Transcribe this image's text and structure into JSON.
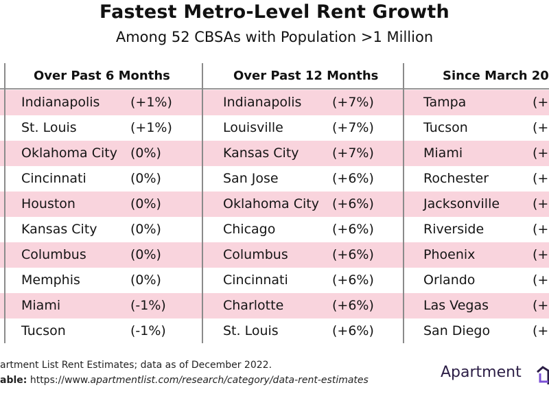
{
  "title": "Fastest Metro-Level Rent Growth",
  "subtitle": "Among 52 CBSAs with Population >1 Million",
  "columns": [
    {
      "header": "Over Past 6 Months",
      "rows": [
        {
          "metro": "Indianapolis",
          "value": "(+1%)"
        },
        {
          "metro": "St. Louis",
          "value": "(+1%)"
        },
        {
          "metro": "Oklahoma City",
          "value": "(0%)"
        },
        {
          "metro": "Cincinnati",
          "value": "(0%)"
        },
        {
          "metro": "Houston",
          "value": "(0%)"
        },
        {
          "metro": "Kansas City",
          "value": "(0%)"
        },
        {
          "metro": "Columbus",
          "value": "(0%)"
        },
        {
          "metro": "Memphis",
          "value": "(0%)"
        },
        {
          "metro": "Miami",
          "value": "(-1%)"
        },
        {
          "metro": "Tucson",
          "value": "(-1%)"
        }
      ]
    },
    {
      "header": "Over Past 12 Months",
      "rows": [
        {
          "metro": "Indianapolis",
          "value": "(+7%)"
        },
        {
          "metro": "Louisville",
          "value": "(+7%)"
        },
        {
          "metro": "Kansas City",
          "value": "(+7%)"
        },
        {
          "metro": "San Jose",
          "value": "(+6%)"
        },
        {
          "metro": "Oklahoma City",
          "value": "(+6%)"
        },
        {
          "metro": "Chicago",
          "value": "(+6%)"
        },
        {
          "metro": "Columbus",
          "value": "(+6%)"
        },
        {
          "metro": "Cincinnati",
          "value": "(+6%)"
        },
        {
          "metro": "Charlotte",
          "value": "(+6%)"
        },
        {
          "metro": "St. Louis",
          "value": "(+6%)"
        }
      ]
    },
    {
      "header": "Since March 20",
      "rows": [
        {
          "metro": "Tampa",
          "value": "(+"
        },
        {
          "metro": "Tucson",
          "value": "(+"
        },
        {
          "metro": "Miami",
          "value": "(+"
        },
        {
          "metro": "Rochester",
          "value": "(+"
        },
        {
          "metro": "Jacksonville",
          "value": "(+"
        },
        {
          "metro": "Riverside",
          "value": "(+"
        },
        {
          "metro": "Phoenix",
          "value": "(+"
        },
        {
          "metro": "Orlando",
          "value": "(+"
        },
        {
          "metro": "Las Vegas",
          "value": "(+"
        },
        {
          "metro": "San Diego",
          "value": "(+"
        }
      ]
    }
  ],
  "footer": {
    "source": "artment List Rent Estimates; data as of December 2022.",
    "available_label": "able:",
    "url_plain": "https://www.",
    "url_italic": "apartmentlist.com/research/category/data-rent-estimates"
  },
  "logo": {
    "text": "Apartment",
    "icon": "house-logo-icon",
    "color": "#2b1d45",
    "accent": "#7b4fd6"
  },
  "colors": {
    "row_highlight": "#f9d4dd",
    "divider": "#8a8a8a"
  }
}
